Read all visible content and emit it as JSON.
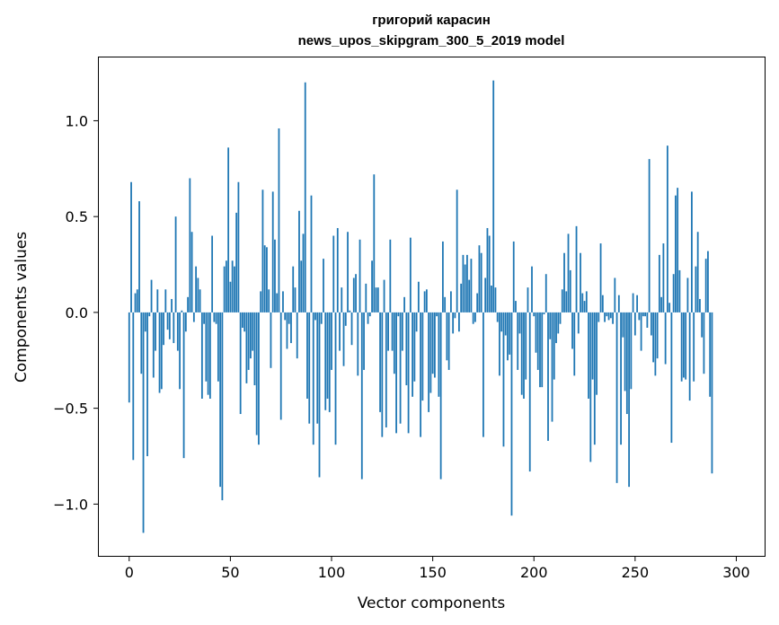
{
  "chart_data": {
    "type": "bar",
    "title_line1": "григорий карасин",
    "title_line2": "news_upos_skipgram_300_5_2019 model",
    "xlabel": "Vector components",
    "ylabel": "Components values",
    "xlim": [
      -15,
      314
    ],
    "ylim": [
      -1.27,
      1.33
    ],
    "xticks": [
      0,
      50,
      100,
      150,
      200,
      250,
      300
    ],
    "xtick_labels": [
      "0",
      "50",
      "100",
      "150",
      "200",
      "250",
      "300"
    ],
    "yticks": [
      -1.0,
      -0.5,
      0.0,
      0.5,
      1.0
    ],
    "ytick_labels": [
      "−1.0",
      "−0.5",
      "0.0",
      "0.5",
      "1.0"
    ],
    "bar_color": "#1f77b4",
    "values": [
      -0.47,
      0.68,
      -0.77,
      0.1,
      0.12,
      0.58,
      -0.32,
      -1.15,
      -0.1,
      -0.75,
      -0.02,
      0.17,
      -0.34,
      -0.2,
      0.12,
      -0.42,
      -0.4,
      -0.17,
      0.12,
      -0.09,
      -0.14,
      0.07,
      -0.16,
      0.5,
      -0.2,
      -0.4,
      0.01,
      -0.76,
      -0.1,
      0.08,
      0.7,
      0.42,
      -0.05,
      0.24,
      0.18,
      0.12,
      -0.45,
      -0.06,
      -0.36,
      -0.43,
      -0.45,
      0.4,
      -0.05,
      -0.06,
      -0.36,
      -0.91,
      -0.98,
      0.24,
      0.27,
      0.86,
      0.16,
      0.27,
      0.24,
      0.52,
      0.68,
      -0.53,
      -0.08,
      -0.1,
      -0.37,
      -0.3,
      -0.24,
      -0.2,
      -0.38,
      -0.64,
      -0.69,
      0.11,
      0.64,
      0.35,
      0.34,
      0.12,
      -0.29,
      0.63,
      0.38,
      0.1,
      0.96,
      -0.56,
      0.11,
      -0.04,
      -0.19,
      -0.06,
      -0.16,
      0.24,
      0.13,
      -0.24,
      0.53,
      0.27,
      0.41,
      1.2,
      -0.45,
      -0.58,
      0.61,
      -0.69,
      -0.04,
      -0.58,
      -0.86,
      -0.06,
      0.28,
      -0.51,
      -0.45,
      -0.52,
      -0.3,
      0.4,
      -0.69,
      0.44,
      -0.2,
      0.13,
      -0.28,
      -0.07,
      0.42,
      0.01,
      -0.17,
      0.18,
      0.2,
      -0.33,
      0.38,
      -0.87,
      -0.3,
      0.15,
      -0.06,
      -0.02,
      0.27,
      0.72,
      0.13,
      0.13,
      -0.52,
      -0.65,
      0.17,
      -0.6,
      -0.2,
      0.38,
      -0.2,
      -0.32,
      -0.63,
      -0.02,
      -0.58,
      -0.2,
      0.08,
      -0.38,
      -0.63,
      0.39,
      -0.44,
      -0.36,
      -0.1,
      0.16,
      -0.65,
      -0.46,
      0.11,
      0.12,
      -0.52,
      -0.42,
      -0.32,
      -0.34,
      -0.02,
      -0.44,
      -0.87,
      0.37,
      0.08,
      -0.25,
      -0.3,
      0.11,
      -0.11,
      -0.03,
      0.64,
      -0.1,
      0.15,
      0.3,
      0.25,
      0.3,
      0.17,
      0.28,
      -0.06,
      -0.05,
      0.1,
      0.35,
      0.31,
      -0.65,
      0.18,
      0.44,
      0.4,
      0.14,
      1.21,
      0.13,
      -0.05,
      -0.33,
      -0.1,
      -0.7,
      -0.12,
      -0.25,
      -0.22,
      -1.06,
      0.37,
      0.06,
      -0.3,
      -0.11,
      -0.43,
      -0.45,
      -0.35,
      0.13,
      -0.83,
      0.24,
      -0.02,
      -0.21,
      -0.3,
      -0.39,
      -0.39,
      -0.01,
      0.2,
      -0.67,
      -0.14,
      -0.57,
      -0.35,
      -0.16,
      -0.11,
      -0.06,
      0.12,
      0.31,
      0.11,
      0.41,
      0.22,
      -0.19,
      -0.33,
      0.45,
      -0.11,
      0.31,
      0.1,
      0.06,
      0.11,
      -0.45,
      -0.78,
      -0.35,
      -0.69,
      -0.43,
      -0.05,
      0.36,
      0.09,
      -0.05,
      -0.02,
      -0.04,
      -0.03,
      -0.06,
      0.18,
      -0.89,
      0.09,
      -0.69,
      -0.13,
      -0.41,
      -0.53,
      -0.91,
      -0.4,
      0.1,
      -0.12,
      0.09,
      -0.04,
      -0.2,
      -0.02,
      -0.02,
      -0.08,
      0.8,
      -0.12,
      -0.26,
      -0.33,
      -0.24,
      0.3,
      0.08,
      0.36,
      -0.27,
      0.87,
      0.05,
      -0.68,
      0.2,
      0.61,
      0.65,
      0.22,
      -0.36,
      -0.34,
      -0.35,
      0.18,
      -0.46,
      0.63,
      -0.36,
      0.24,
      0.42,
      0.07,
      -0.13,
      -0.32,
      0.28,
      0.32,
      -0.44,
      -0.84
    ]
  }
}
